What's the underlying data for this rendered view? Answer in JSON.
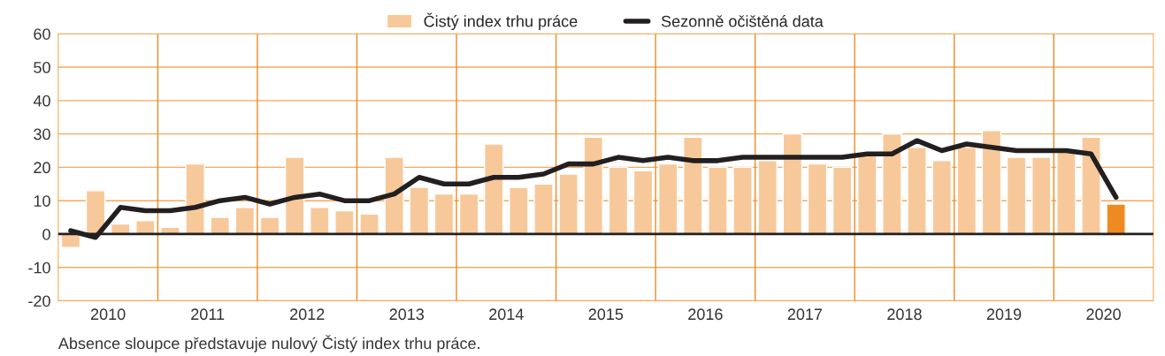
{
  "chart_data": {
    "type": "bar",
    "x": [
      2010.125,
      2010.375,
      2010.625,
      2010.875,
      2011.125,
      2011.375,
      2011.625,
      2011.875,
      2012.125,
      2012.375,
      2012.625,
      2012.875,
      2013.125,
      2013.375,
      2013.625,
      2013.875,
      2014.125,
      2014.375,
      2014.625,
      2014.875,
      2015.125,
      2015.375,
      2015.625,
      2015.875,
      2016.125,
      2016.375,
      2016.625,
      2016.875,
      2017.125,
      2017.375,
      2017.625,
      2017.875,
      2018.125,
      2018.375,
      2018.625,
      2018.875,
      2019.125,
      2019.375,
      2019.625,
      2019.875,
      2020.125,
      2020.375,
      2020.625
    ],
    "series": [
      {
        "name": "Čistý index trhu práce",
        "color": "#f7c99a",
        "colors": [
          "#f7c99a",
          "#f7c99a",
          "#f7c99a",
          "#f7c99a",
          "#f7c99a",
          "#f7c99a",
          "#f7c99a",
          "#f7c99a",
          "#f7c99a",
          "#f7c99a",
          "#f7c99a",
          "#f7c99a",
          "#f7c99a",
          "#f7c99a",
          "#f7c99a",
          "#f7c99a",
          "#f7c99a",
          "#f7c99a",
          "#f7c99a",
          "#f7c99a",
          "#f7c99a",
          "#f7c99a",
          "#f7c99a",
          "#f7c99a",
          "#f7c99a",
          "#f7c99a",
          "#f7c99a",
          "#f7c99a",
          "#f7c99a",
          "#f7c99a",
          "#f7c99a",
          "#f7c99a",
          "#f7c99a",
          "#f7c99a",
          "#f7c99a",
          "#f7c99a",
          "#f7c99a",
          "#f7c99a",
          "#f7c99a",
          "#f7c99a",
          "#f7c99a",
          "#f7c99a",
          "#ee8a20"
        ],
        "values": [
          -4,
          13,
          3,
          4,
          2,
          21,
          5,
          8,
          5,
          23,
          8,
          7,
          6,
          23,
          14,
          12,
          12,
          27,
          14,
          15,
          18,
          29,
          20,
          19,
          21,
          29,
          20,
          20,
          22,
          30,
          21,
          20,
          24,
          30,
          26,
          22,
          26,
          31,
          23,
          23,
          25,
          29,
          9
        ]
      },
      {
        "name": "Sezonně očištěná data",
        "type": "line",
        "color": "#231f20",
        "values": [
          1,
          -1,
          8,
          7,
          7,
          8,
          10,
          11,
          9,
          11,
          12,
          10,
          10,
          12,
          17,
          15,
          15,
          17,
          17,
          18,
          21,
          21,
          23,
          22,
          23,
          22,
          22,
          23,
          23,
          23,
          23,
          23,
          24,
          24,
          28,
          25,
          27,
          26,
          25,
          25,
          25,
          24,
          11
        ]
      }
    ],
    "xlim": [
      2010,
      2021
    ],
    "xticks": [
      {
        "value": 2010.5,
        "label": "2010"
      },
      {
        "value": 2011.5,
        "label": "2011"
      },
      {
        "value": 2012.5,
        "label": "2012"
      },
      {
        "value": 2013.5,
        "label": "2013"
      },
      {
        "value": 2014.5,
        "label": "2014"
      },
      {
        "value": 2015.5,
        "label": "2015"
      },
      {
        "value": 2016.5,
        "label": "2016"
      },
      {
        "value": 2017.5,
        "label": "2017"
      },
      {
        "value": 2018.5,
        "label": "2018"
      },
      {
        "value": 2019.5,
        "label": "2019"
      },
      {
        "value": 2020.5,
        "label": "2020"
      }
    ],
    "ylim": [
      -20,
      60
    ],
    "yticks": [
      -20,
      -10,
      0,
      10,
      20,
      30,
      40,
      50,
      60
    ],
    "grid": "y",
    "ref_lines": [
      {
        "axis": "y",
        "value": 0,
        "color": "#231f20"
      },
      {
        "axis": "x",
        "value": 2011,
        "color": "#ee8a20"
      },
      {
        "axis": "x",
        "value": 2012,
        "color": "#ee8a20"
      },
      {
        "axis": "x",
        "value": 2013,
        "color": "#ee8a20"
      },
      {
        "axis": "x",
        "value": 2014,
        "color": "#ee8a20"
      },
      {
        "axis": "x",
        "value": 2015,
        "color": "#ee8a20"
      },
      {
        "axis": "x",
        "value": 2016,
        "color": "#ee8a20"
      },
      {
        "axis": "x",
        "value": 2017,
        "color": "#ee8a20"
      },
      {
        "axis": "x",
        "value": 2018,
        "color": "#ee8a20"
      },
      {
        "axis": "x",
        "value": 2019,
        "color": "#ee8a20"
      },
      {
        "axis": "x",
        "value": 2020,
        "color": "#ee8a20"
      }
    ],
    "legend": "top",
    "annotations": [
      "Absence sloupce představuje nulový Čistý index trhu práce."
    ]
  }
}
